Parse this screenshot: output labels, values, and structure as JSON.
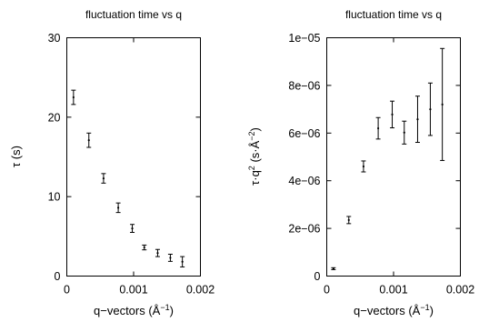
{
  "chart_data": [
    {
      "type": "scatter",
      "title": "fluctuation time vs q",
      "xlabel": "q−vectors (Å",
      "xlabel_sup": "−1",
      "xlabel_close": ")",
      "ylabel": "τ (s)",
      "xlim": [
        0,
        0.002
      ],
      "ylim": [
        0,
        30
      ],
      "xticks": [
        "0",
        "0.001",
        "0.002"
      ],
      "xtick_values": [
        0,
        0.001,
        0.002
      ],
      "yticks": [
        "0",
        "10",
        "20",
        "30"
      ],
      "ytick_values": [
        0,
        10,
        20,
        30
      ],
      "grid": false,
      "points": [
        {
          "x": 0.0001,
          "y": 22.5,
          "yerr": 0.9
        },
        {
          "x": 0.00033,
          "y": 17.1,
          "yerr": 0.9
        },
        {
          "x": 0.00055,
          "y": 12.3,
          "yerr": 0.6
        },
        {
          "x": 0.00077,
          "y": 8.6,
          "yerr": 0.6
        },
        {
          "x": 0.00098,
          "y": 6.0,
          "yerr": 0.5
        },
        {
          "x": 0.00116,
          "y": 3.6,
          "yerr": 0.3
        },
        {
          "x": 0.00136,
          "y": 2.9,
          "yerr": 0.45
        },
        {
          "x": 0.00155,
          "y": 2.3,
          "yerr": 0.45
        },
        {
          "x": 0.00173,
          "y": 1.8,
          "yerr": 0.65
        }
      ]
    },
    {
      "type": "scatter",
      "title": "fluctuation time vs q",
      "xlabel": "q−vectors (Å",
      "xlabel_sup": "−1",
      "xlabel_close": ")",
      "ylabel": "τ·q",
      "ylabel_sup": "2",
      "ylabel_mid": " (s·Å",
      "ylabel_sup2": "−2",
      "ylabel_close": ")",
      "xlim": [
        0,
        0.002
      ],
      "ylim": [
        0,
        1e-05
      ],
      "xticks": [
        "0",
        "0.001",
        "0.002"
      ],
      "xtick_values": [
        0,
        0.001,
        0.002
      ],
      "yticks": [
        "0",
        "2e−06",
        "4e−06",
        "6e−06",
        "8e−06",
        "1e−05"
      ],
      "ytick_values": [
        0,
        2e-06,
        4e-06,
        6e-06,
        8e-06,
        1e-05
      ],
      "grid": false,
      "points": [
        {
          "x": 0.0001,
          "y": 3.1e-07,
          "yerr": 4e-08
        },
        {
          "x": 0.00033,
          "y": 2.35e-06,
          "yerr": 1.5e-07
        },
        {
          "x": 0.00055,
          "y": 4.6e-06,
          "yerr": 2.3e-07
        },
        {
          "x": 0.00077,
          "y": 6.2e-06,
          "yerr": 4.5e-07
        },
        {
          "x": 0.00098,
          "y": 6.78e-06,
          "yerr": 5.6e-07
        },
        {
          "x": 0.00116,
          "y": 6.02e-06,
          "yerr": 4.8e-07
        },
        {
          "x": 0.00136,
          "y": 6.58e-06,
          "yerr": 9.7e-07
        },
        {
          "x": 0.00155,
          "y": 7e-06,
          "yerr": 1.1e-06
        },
        {
          "x": 0.00173,
          "y": 7.2e-06,
          "yerr": 2.35e-06
        }
      ]
    }
  ]
}
